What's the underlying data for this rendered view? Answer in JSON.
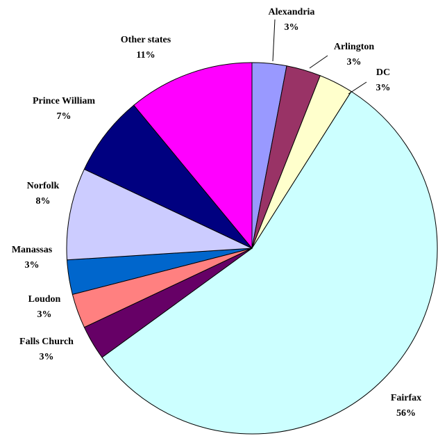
{
  "chart_data": {
    "type": "pie",
    "categories": [
      "Alexandria",
      "Arlington",
      "DC",
      "Fairfax",
      "Falls Church",
      "Loudon",
      "Manassas",
      "Norfolk",
      "Prince William",
      "Other states"
    ],
    "values": [
      3,
      3,
      3,
      56,
      3,
      3,
      3,
      8,
      7,
      11
    ],
    "value_labels": [
      "3%",
      "3%",
      "3%",
      "56%",
      "3%",
      "3%",
      "3%",
      "8%",
      "7%",
      "11%"
    ],
    "colors": [
      "#9999ff",
      "#993366",
      "#ffffcc",
      "#ccffff",
      "#660066",
      "#ff8080",
      "#0066cc",
      "#ccccff",
      "#000080",
      "#ff00ff"
    ]
  }
}
